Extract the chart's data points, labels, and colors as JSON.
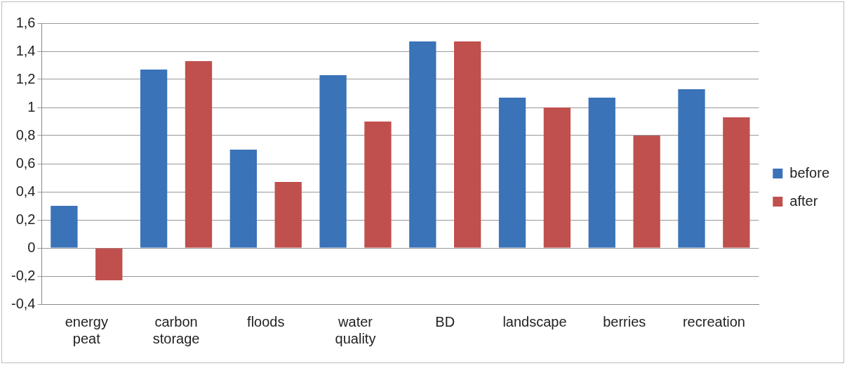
{
  "chart_data": {
    "type": "bar",
    "categories": [
      "energy peat",
      "carbon storage",
      "floods",
      "water quality",
      "BD",
      "landscape",
      "berries",
      "recreation"
    ],
    "series": [
      {
        "name": "before",
        "color": "#3a73b8",
        "values": [
          0.3,
          1.27,
          0.7,
          1.23,
          1.47,
          1.07,
          1.07,
          1.13
        ]
      },
      {
        "name": "after",
        "color": "#c0504d",
        "values": [
          -0.23,
          1.33,
          0.47,
          0.9,
          1.47,
          1.0,
          0.8,
          0.93
        ]
      }
    ],
    "ylim": [
      -0.4,
      1.6
    ],
    "yticks": [
      {
        "value": -0.4,
        "label": "-0,4"
      },
      {
        "value": -0.2,
        "label": "-0,2"
      },
      0,
      {
        "value": 0.2,
        "label": "0,2"
      },
      {
        "value": 0.4,
        "label": "0,4"
      },
      {
        "value": 0.6,
        "label": "0,6"
      },
      {
        "value": 0.8,
        "label": "0,8"
      },
      1,
      {
        "value": 1.2,
        "label": "1,2"
      },
      {
        "value": 1.4,
        "label": "1,4"
      },
      {
        "value": 1.6,
        "label": "1,6"
      }
    ],
    "grid": "y",
    "legend": "right"
  }
}
